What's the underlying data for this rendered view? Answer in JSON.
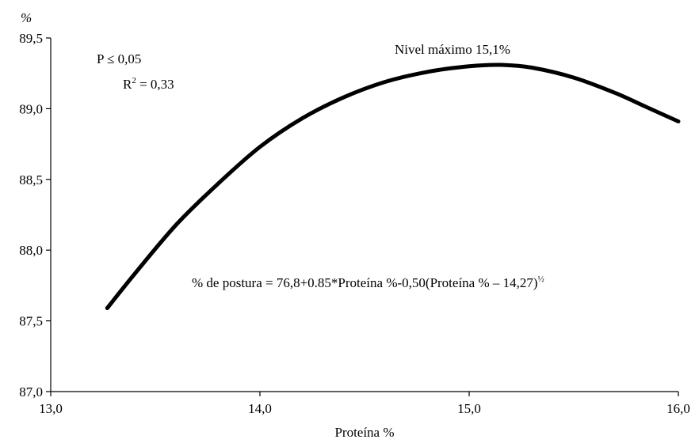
{
  "chart_data": {
    "type": "line",
    "title": "",
    "ylabel": "%",
    "xlabel": "Proteína %",
    "xlim": [
      13.0,
      16.0
    ],
    "ylim": [
      87.0,
      89.5
    ],
    "x_ticks": [
      "13,0",
      "14,0",
      "15,0",
      "16,0"
    ],
    "y_ticks": [
      "87,0",
      "87,5",
      "88,0",
      "88,5",
      "89,0",
      "89,5"
    ],
    "grid": false,
    "legend": "none",
    "line_color": "#000000",
    "series": [
      {
        "x": [
          13.27,
          13.4,
          13.6,
          13.8,
          14.0,
          14.2,
          14.4,
          14.6,
          14.8,
          15.0,
          15.15,
          15.3,
          15.5,
          15.7,
          15.85,
          16.0
        ],
        "values": [
          87.59,
          87.83,
          88.18,
          88.47,
          88.73,
          88.93,
          89.08,
          89.19,
          89.26,
          89.3,
          89.31,
          89.29,
          89.22,
          89.11,
          89.01,
          88.91
        ]
      }
    ],
    "annotations": {
      "p_value": "P ≤ 0,05",
      "r2_prefix": "R",
      "r2_sup": "2",
      "r2_suffix": " = 0,33",
      "max_level": "Nivel máximo 15,1%",
      "equation_main": "% de postura = 76,8+0.85*Proteína %-0,50(Proteína % – 14,27)",
      "equation_sup": "½"
    }
  }
}
